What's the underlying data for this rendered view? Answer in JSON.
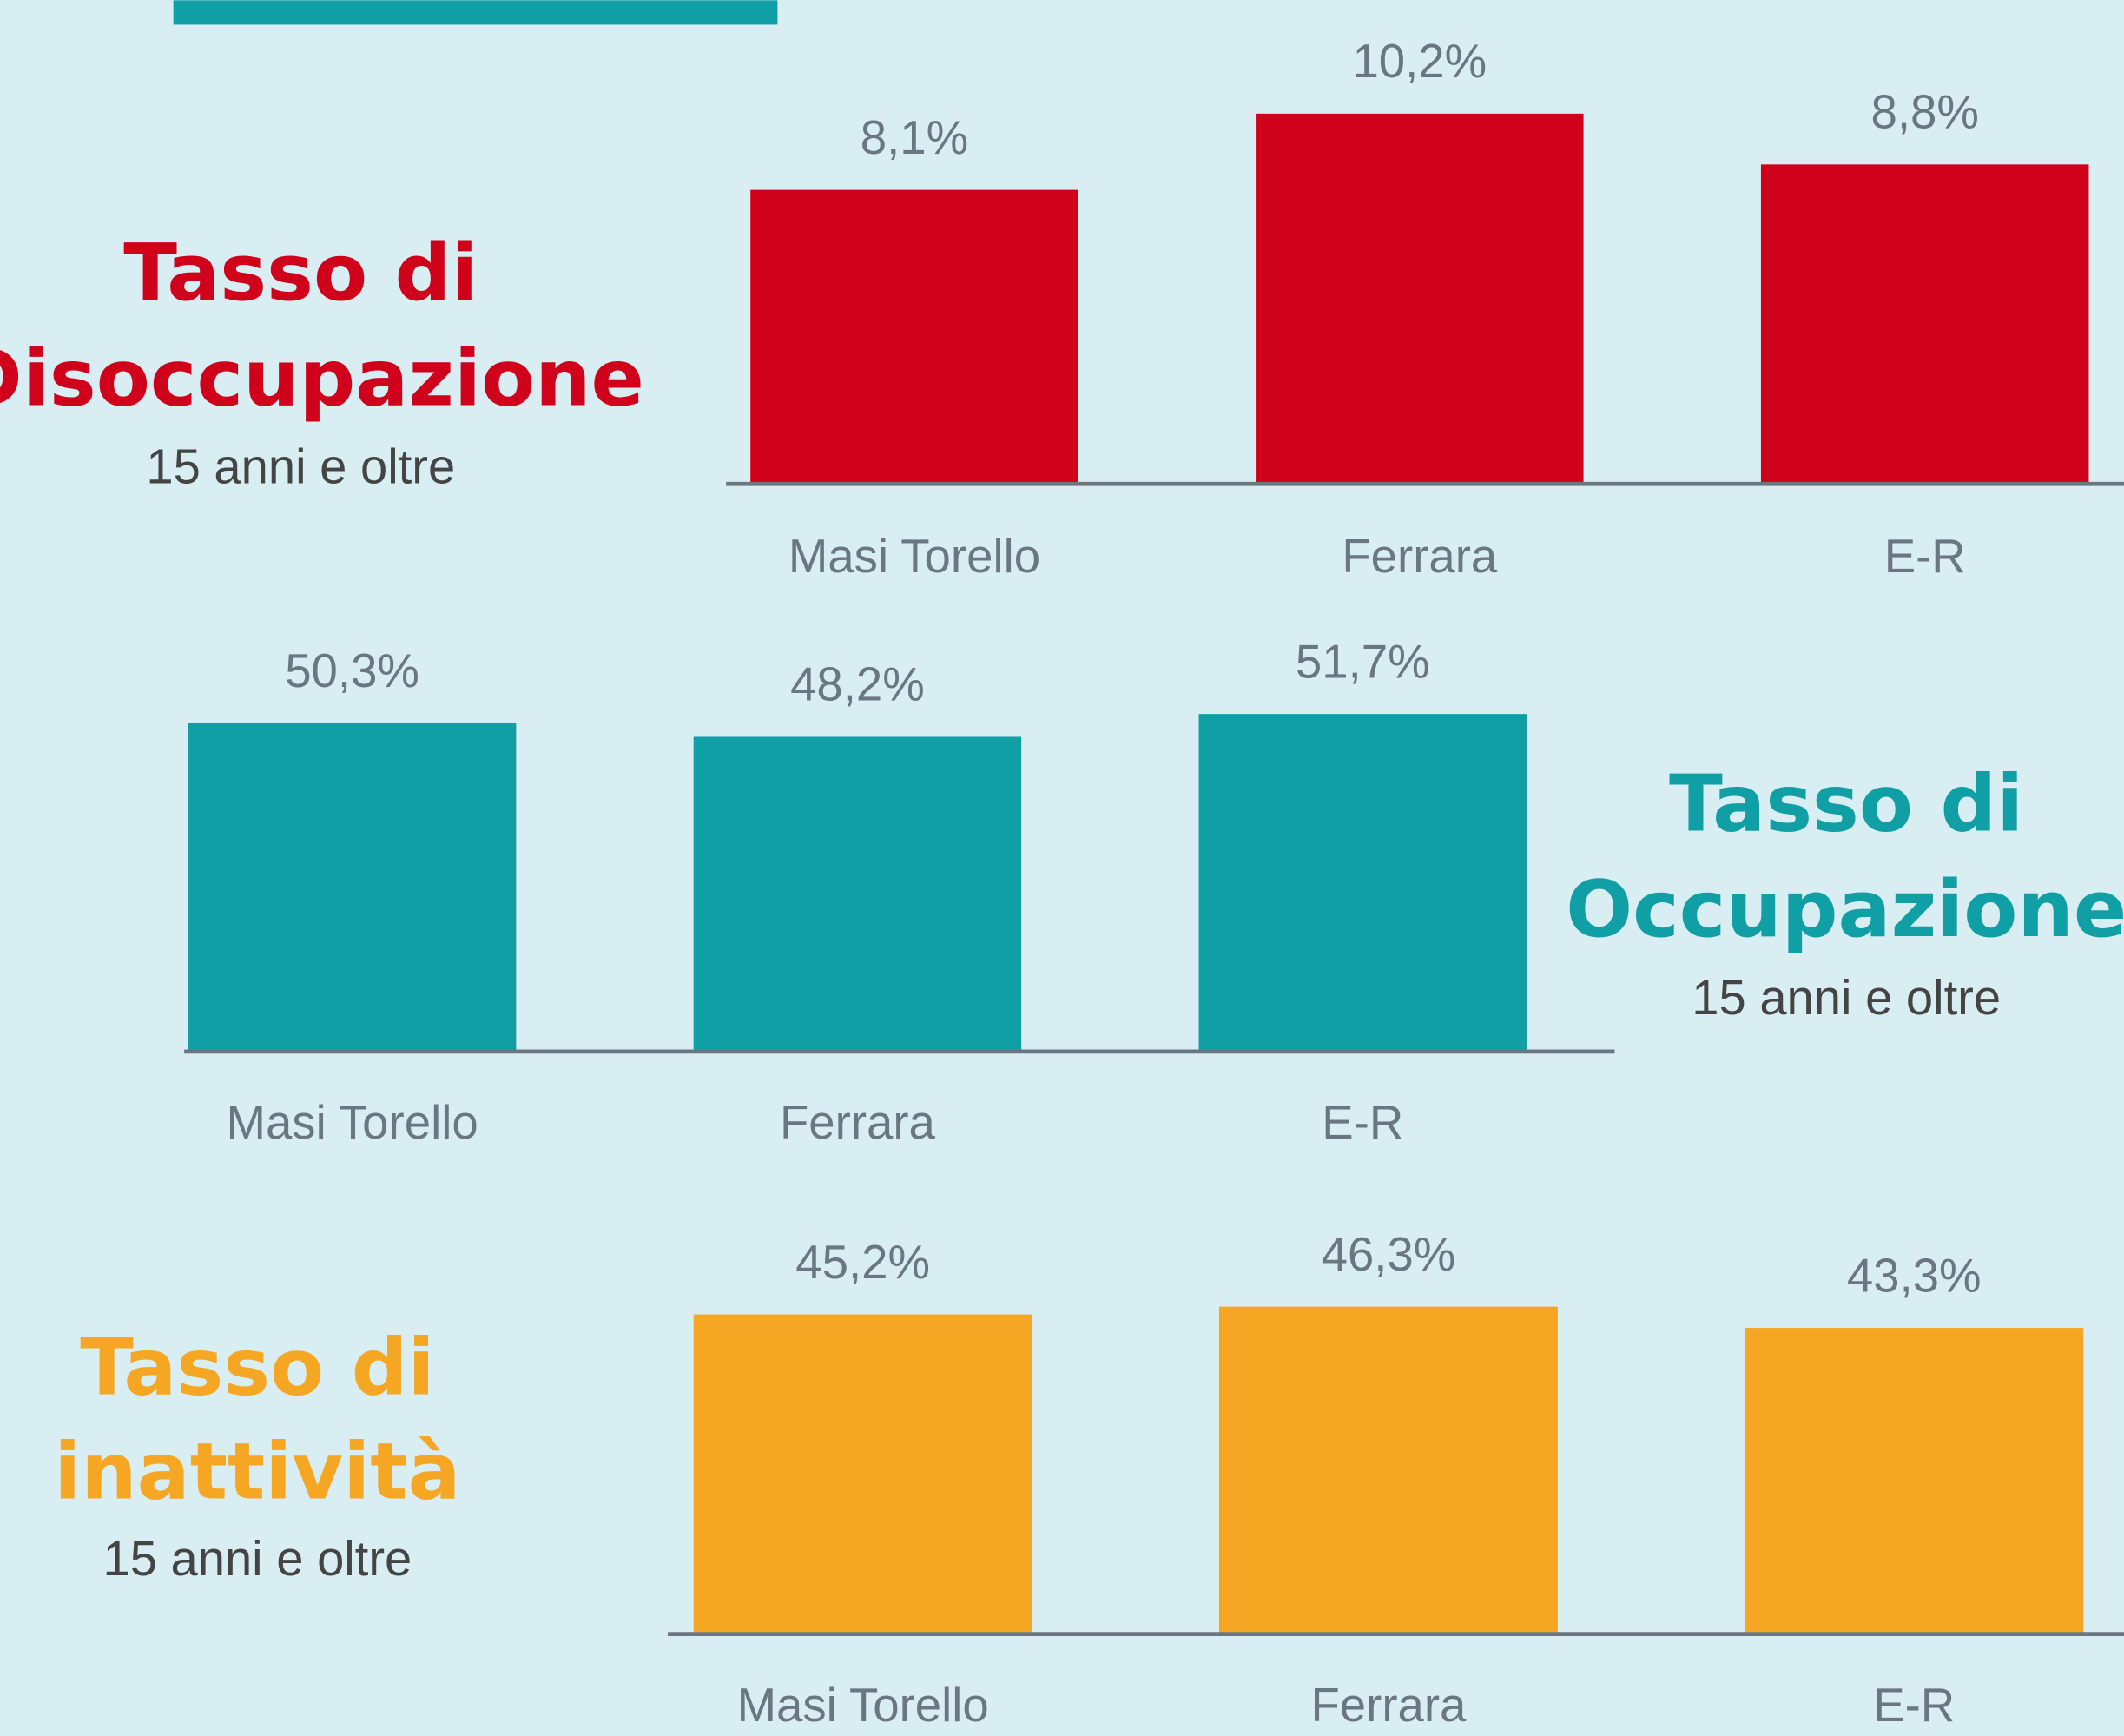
{
  "chart_data": [
    {
      "type": "bar",
      "title_lines": [
        "Tasso di",
        "Disoccupazione"
      ],
      "subtitle": "15 anni e oltre",
      "categories": [
        "Masi Torello",
        "Ferrara",
        "E-R"
      ],
      "values": [
        8.1,
        10.2,
        8.8
      ],
      "value_labels": [
        "8,1%",
        "10,2%",
        "8,8%"
      ],
      "color": "#d0021b"
    },
    {
      "type": "bar",
      "title_lines": [
        "Tasso di",
        "Occupazione"
      ],
      "subtitle": "15 anni e oltre",
      "categories": [
        "Masi Torello",
        "Ferrara",
        "E-R"
      ],
      "values": [
        50.3,
        48.2,
        51.7
      ],
      "value_labels": [
        "50,3%",
        "48,2%",
        "51,7%"
      ],
      "color": "#109fa5"
    },
    {
      "type": "bar",
      "title_lines": [
        "Tasso di",
        "inattività"
      ],
      "subtitle": "15 anni e oltre",
      "categories": [
        "Masi Torello",
        "Ferrara",
        "E-R"
      ],
      "values": [
        45.2,
        46.3,
        43.3
      ],
      "value_labels": [
        "45,2%",
        "46,3%",
        "43,3%"
      ],
      "color": "#f5a623"
    }
  ]
}
